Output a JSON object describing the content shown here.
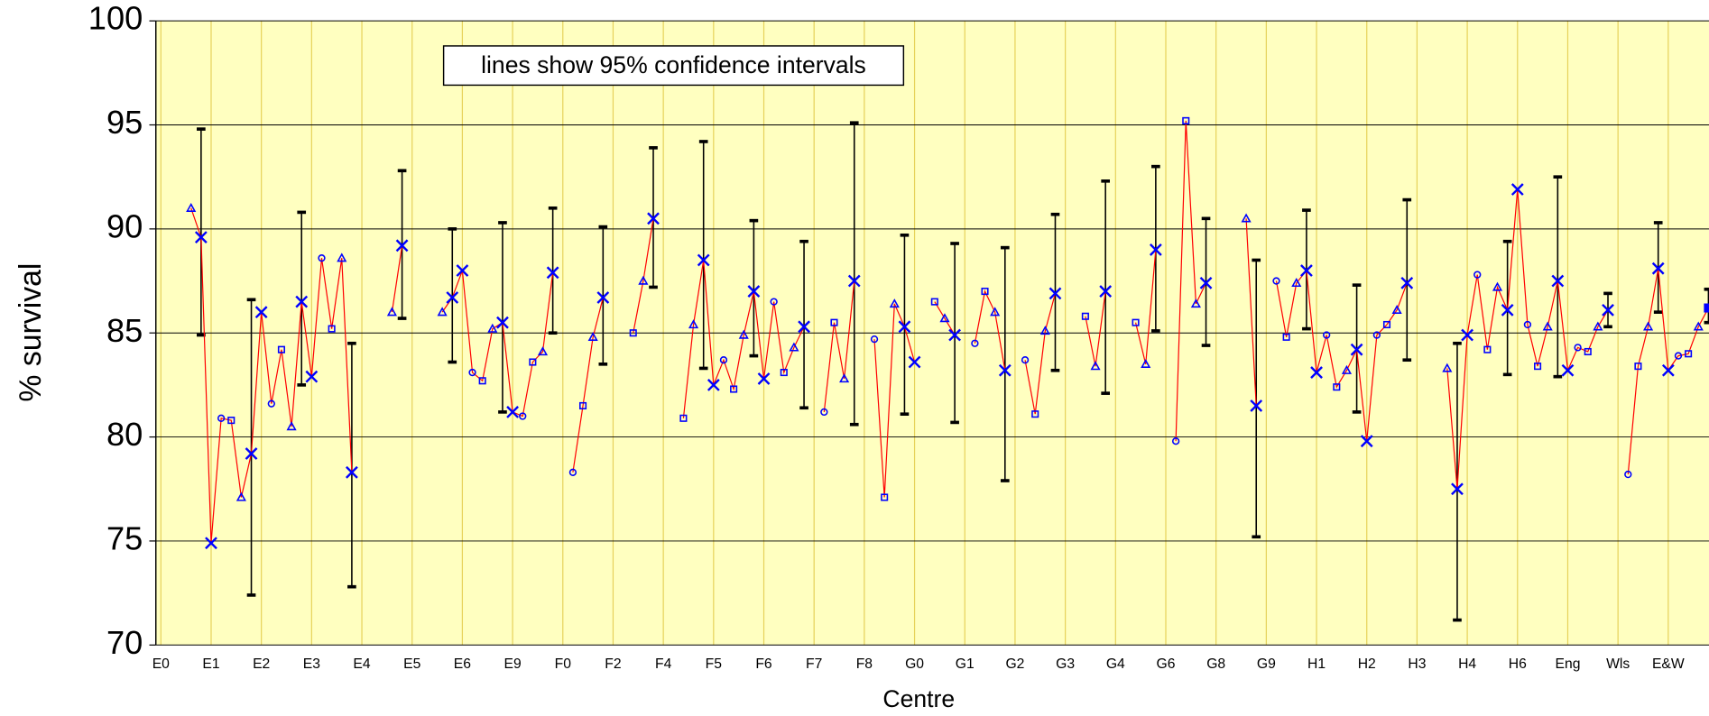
{
  "chart_data": {
    "type": "line",
    "annotation": "lines show 95% confidence intervals",
    "ylabel": "% survival",
    "xlabel": "Centre",
    "ylim": [
      70,
      100
    ],
    "yticks": [
      70,
      75,
      80,
      85,
      90,
      95,
      100
    ],
    "grid": true,
    "color": "#0000ff",
    "line_color": "#ff0000",
    "error_color": "#000000",
    "background": "#ffffc0",
    "vgrid_color": "#e6d25a",
    "categories": [
      "E0",
      null,
      null,
      null,
      null,
      "E1",
      null,
      null,
      null,
      null,
      "E2",
      null,
      null,
      null,
      null,
      "E3",
      null,
      null,
      null,
      null,
      "E4",
      null,
      null,
      null,
      null,
      "E5",
      null,
      null,
      null,
      null,
      "E6",
      null,
      null,
      null,
      null,
      "E9",
      null,
      null,
      null,
      null,
      "F0",
      null,
      null,
      null,
      null,
      "F2",
      null,
      null,
      null,
      null,
      "F4",
      null,
      null,
      null,
      null,
      "F5",
      null,
      null,
      null,
      null,
      "F6",
      null,
      null,
      null,
      null,
      "F7",
      null,
      null,
      null,
      null,
      "F8",
      null,
      null,
      null,
      null,
      "G0",
      null,
      null,
      null,
      null,
      "G1",
      null,
      null,
      null,
      null,
      "G2",
      null,
      null,
      null,
      null,
      "G3",
      null,
      null,
      null,
      null,
      "G4",
      null,
      null,
      null,
      null,
      "G6",
      null,
      null,
      null,
      null,
      "G8",
      null,
      null,
      null,
      null,
      "G9",
      null,
      null,
      null,
      null,
      "H1",
      null,
      null,
      null,
      null,
      "H2",
      null,
      null,
      null,
      null,
      "H3",
      null,
      null,
      null,
      null,
      "H4",
      null,
      null,
      null,
      null,
      "H6",
      null,
      null,
      null,
      null,
      "Eng",
      null,
      null,
      null,
      null,
      "Wls",
      null,
      null,
      null,
      null,
      "E&W",
      null,
      null,
      null,
      null
    ],
    "values": [
      null,
      null,
      null,
      91.0,
      89.6,
      74.9,
      80.9,
      80.8,
      77.1,
      79.2,
      86.0,
      81.6,
      84.2,
      80.5,
      86.5,
      82.9,
      88.6,
      85.2,
      88.6,
      78.3,
      null,
      null,
      null,
      86.0,
      89.2,
      null,
      null,
      null,
      86.0,
      86.7,
      88.0,
      83.1,
      82.7,
      85.2,
      85.5,
      81.2,
      81.0,
      83.6,
      84.1,
      87.9,
      null,
      78.3,
      81.5,
      84.8,
      86.7,
      null,
      null,
      85.0,
      87.5,
      90.5,
      null,
      null,
      80.9,
      85.4,
      88.5,
      82.5,
      83.7,
      82.3,
      84.9,
      87.0,
      82.8,
      86.5,
      83.1,
      84.3,
      85.3,
      null,
      81.2,
      85.5,
      82.8,
      87.5,
      null,
      84.7,
      77.1,
      86.4,
      85.3,
      83.6,
      null,
      86.5,
      85.7,
      84.9,
      null,
      84.5,
      87.0,
      86.0,
      83.2,
      null,
      83.7,
      81.1,
      85.1,
      86.9,
      null,
      null,
      85.8,
      83.4,
      87.0,
      null,
      null,
      85.5,
      83.5,
      89.0,
      null,
      79.8,
      95.2,
      86.4,
      87.4,
      null,
      null,
      null,
      90.5,
      81.5,
      null,
      87.5,
      84.8,
      87.4,
      88.0,
      83.1,
      84.9,
      82.4,
      83.2,
      84.2,
      79.8,
      84.9,
      85.4,
      86.1,
      87.4,
      null,
      null,
      null,
      83.3,
      77.5,
      84.9,
      87.8,
      84.2,
      87.2,
      86.1,
      91.9,
      85.4,
      83.4,
      85.3,
      87.5,
      83.2,
      84.3,
      84.1,
      85.3,
      86.1,
      null,
      78.2,
      83.4,
      85.3,
      88.1,
      83.2,
      83.9,
      84.0,
      85.3,
      86.2
    ],
    "markers": [
      null,
      null,
      null,
      "^",
      "x",
      "x",
      "o",
      "s",
      "^",
      "x",
      "x",
      "o",
      "s",
      "^",
      "x",
      "x",
      "o",
      "s",
      "^",
      "x",
      null,
      null,
      null,
      "^",
      "x",
      null,
      null,
      null,
      "^",
      "x",
      "x",
      "o",
      "s",
      "^",
      "x",
      "x",
      "o",
      "s",
      "^",
      "x",
      null,
      "o",
      "s",
      "^",
      "x",
      null,
      null,
      "s",
      "^",
      "x",
      null,
      null,
      "s",
      "^",
      "x",
      "x",
      "o",
      "s",
      "^",
      "x",
      "x",
      "o",
      "s",
      "^",
      "x",
      null,
      "o",
      "s",
      "^",
      "x",
      null,
      "o",
      "s",
      "^",
      "x",
      "x",
      null,
      "s",
      "^",
      "x",
      null,
      "o",
      "s",
      "^",
      "x",
      null,
      "o",
      "s",
      "^",
      "x",
      null,
      null,
      "s",
      "^",
      "x",
      null,
      null,
      "s",
      "^",
      "x",
      null,
      "o",
      "s",
      "^",
      "x",
      null,
      null,
      null,
      "^",
      "x",
      null,
      "o",
      "s",
      "^",
      "x",
      "x",
      "o",
      "s",
      "^",
      "x",
      "x",
      "o",
      "s",
      "^",
      "x",
      null,
      null,
      null,
      "^",
      "x",
      "x",
      "o",
      "s",
      "^",
      "x",
      "x",
      "o",
      "s",
      "^",
      "x",
      "x",
      "o",
      "s",
      "^",
      "x",
      null,
      "o",
      "s",
      "^",
      "x",
      "x",
      "o",
      "s",
      "^",
      "S"
    ],
    "lower": [
      null,
      null,
      null,
      null,
      84.9,
      null,
      null,
      null,
      null,
      72.4,
      null,
      null,
      null,
      null,
      82.5,
      null,
      null,
      null,
      null,
      72.8,
      null,
      null,
      null,
      null,
      85.7,
      null,
      null,
      null,
      null,
      83.6,
      null,
      null,
      null,
      null,
      81.2,
      null,
      null,
      null,
      null,
      85.0,
      null,
      null,
      null,
      null,
      83.5,
      null,
      null,
      null,
      null,
      87.2,
      null,
      null,
      null,
      null,
      83.3,
      null,
      null,
      null,
      null,
      83.9,
      null,
      null,
      null,
      null,
      81.4,
      null,
      null,
      null,
      null,
      80.6,
      null,
      null,
      null,
      null,
      81.1,
      null,
      null,
      null,
      null,
      80.7,
      null,
      null,
      null,
      null,
      77.9,
      null,
      null,
      null,
      null,
      83.2,
      null,
      null,
      null,
      null,
      82.1,
      null,
      null,
      null,
      null,
      85.1,
      null,
      null,
      null,
      null,
      84.4,
      null,
      null,
      null,
      null,
      75.2,
      null,
      null,
      null,
      null,
      85.2,
      null,
      null,
      null,
      null,
      81.2,
      null,
      null,
      null,
      null,
      83.7,
      null,
      null,
      null,
      null,
      71.2,
      null,
      null,
      null,
      null,
      83.0,
      null,
      null,
      null,
      null,
      82.9,
      null,
      null,
      null,
      null,
      85.3,
      null,
      null,
      null,
      null,
      86.0,
      null,
      null,
      null,
      null,
      85.5
    ],
    "upper": [
      null,
      null,
      null,
      null,
      94.8,
      null,
      null,
      null,
      null,
      86.6,
      null,
      null,
      null,
      null,
      90.8,
      null,
      null,
      null,
      null,
      84.5,
      null,
      null,
      null,
      null,
      92.8,
      null,
      null,
      null,
      null,
      90.0,
      null,
      null,
      null,
      null,
      90.3,
      null,
      null,
      null,
      null,
      91.0,
      null,
      null,
      null,
      null,
      90.1,
      null,
      null,
      null,
      null,
      93.9,
      null,
      null,
      null,
      null,
      94.2,
      null,
      null,
      null,
      null,
      90.4,
      null,
      null,
      null,
      null,
      89.4,
      null,
      null,
      null,
      null,
      95.1,
      null,
      null,
      null,
      null,
      89.7,
      null,
      null,
      null,
      null,
      89.3,
      null,
      null,
      null,
      null,
      89.1,
      null,
      null,
      null,
      null,
      90.7,
      null,
      null,
      null,
      null,
      92.3,
      null,
      null,
      null,
      null,
      93.0,
      null,
      null,
      null,
      null,
      90.5,
      null,
      null,
      null,
      null,
      88.5,
      null,
      null,
      null,
      null,
      90.9,
      null,
      null,
      null,
      null,
      87.3,
      null,
      null,
      null,
      null,
      91.4,
      null,
      null,
      null,
      null,
      84.5,
      null,
      null,
      null,
      null,
      89.4,
      null,
      null,
      null,
      null,
      92.5,
      null,
      null,
      null,
      null,
      86.9,
      null,
      null,
      null,
      null,
      90.3,
      null,
      null,
      null,
      null,
      87.1
    ]
  }
}
